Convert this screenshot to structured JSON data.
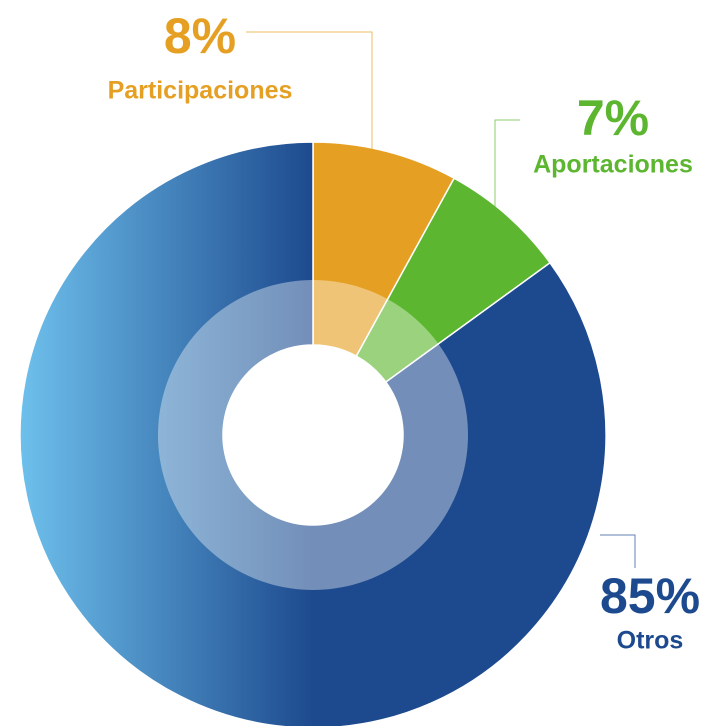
{
  "chart_data": {
    "type": "donut",
    "categories": [
      "Participaciones",
      "Aportaciones",
      "Otros"
    ],
    "values": [
      8,
      7,
      85
    ],
    "value_labels": [
      "8%",
      "7%",
      "85%"
    ],
    "colors": [
      "#e5a024",
      "#5cb630",
      "#1d4a8e"
    ]
  }
}
